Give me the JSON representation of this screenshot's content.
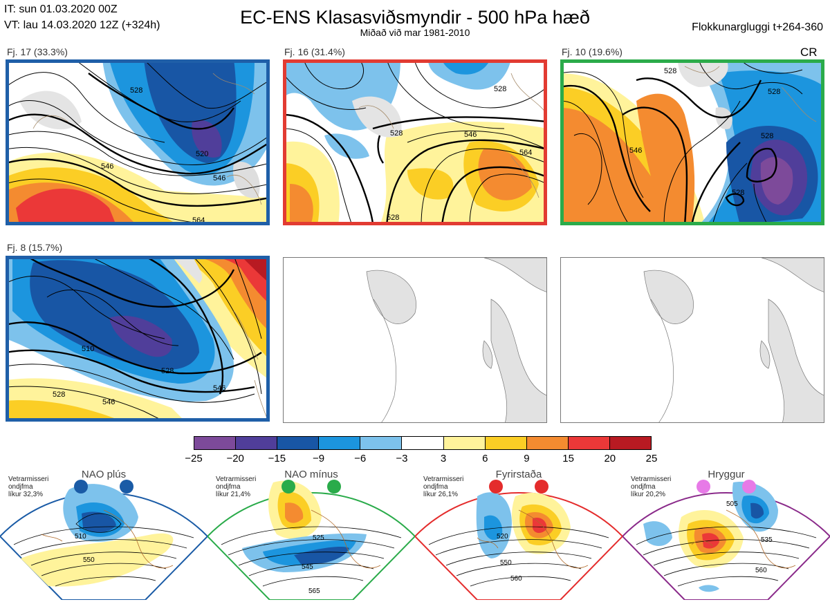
{
  "header": {
    "init_time": "IT: sun 01.03.2020 00Z",
    "valid_time": "VT: lau 14.03.2020 12Z  (+324h)",
    "title": "EC-ENS Klasasviðsmyndir - 500 hPa hæð",
    "subtitle": "Miðað við mar 1981-2010",
    "window": "Flokkunargluggi t+264-360",
    "corner_mark": "CR"
  },
  "panels": [
    {
      "label": "Fj. 17 (33.3%)",
      "border_color": "#1f5fa8",
      "contours": [
        "528",
        "546",
        "520",
        "546",
        "564"
      ]
    },
    {
      "label": "Fj. 16 (31.4%)",
      "border_color": "#e23b32",
      "contours": [
        "528",
        "528",
        "546",
        "564",
        "528"
      ]
    },
    {
      "label": "Fj. 10 (19.6%)",
      "border_color": "#2bab4a",
      "contours": [
        "528",
        "528",
        "528",
        "546",
        "528"
      ]
    },
    {
      "label": "Fj. 8 (15.7%)",
      "border_color": "#1f5fa8",
      "contours": [
        "510",
        "528",
        "546",
        "528",
        "546"
      ]
    }
  ],
  "colorbar": {
    "colors": [
      "#7d4a9a",
      "#503e9a",
      "#1856a5",
      "#1c95de",
      "#7dc2ec",
      "#ffffff",
      "#fff39b",
      "#fbce25",
      "#f48b30",
      "#eb3838",
      "#b81a22"
    ],
    "labels": [
      "−25",
      "−20",
      "−15",
      "−9",
      "−6",
      "−3",
      "3",
      "6",
      "9",
      "15",
      "20",
      "25"
    ]
  },
  "regimes": [
    {
      "name": "NAO plús",
      "prob_label": "Vetrarmisseri",
      "prob_label2": "ondjfma",
      "prob": "líkur 32,3%",
      "color": "#1a5ba6",
      "contours": [
        "510",
        "550"
      ]
    },
    {
      "name": "NAO mínus",
      "prob_label": "Vetrarmisseri",
      "prob_label2": "ondjfma",
      "prob": "líkur 21,4%",
      "color": "#2aab4a",
      "contours": [
        "525",
        "545",
        "565"
      ]
    },
    {
      "name": "Fyrirstaða",
      "prob_label": "Vetrarmisseri",
      "prob_label2": "ondjfma",
      "prob": "líkur 26,1%",
      "color": "#e42c2c",
      "contours": [
        "520",
        "550",
        "560"
      ]
    },
    {
      "name": "Hryggur",
      "prob_label": "Vetrarmisseri",
      "prob_label2": "ondjfma",
      "prob": "líkur 20,2%",
      "color": "#e77ae7",
      "contours": [
        "505",
        "535",
        "560"
      ]
    }
  ]
}
